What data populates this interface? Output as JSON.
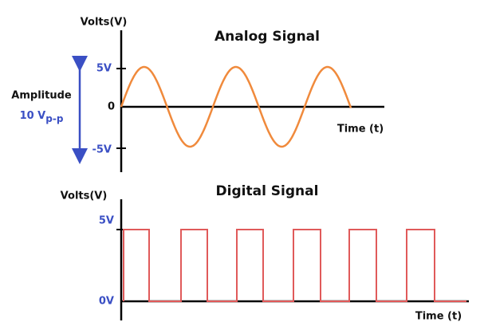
{
  "analog": {
    "title": "Analog Signal",
    "y_label": "Volts(V)",
    "x_label": "Time (t)",
    "ticks": [
      "5V",
      "0",
      "-5V"
    ]
  },
  "amplitude": {
    "label": "Amplitude",
    "value": "10 V",
    "subscript": "p-p"
  },
  "digital": {
    "title": "Digital Signal",
    "y_label": "Volts(V)",
    "x_label": "Time (t)",
    "ticks": [
      "5V",
      "0V"
    ]
  }
}
